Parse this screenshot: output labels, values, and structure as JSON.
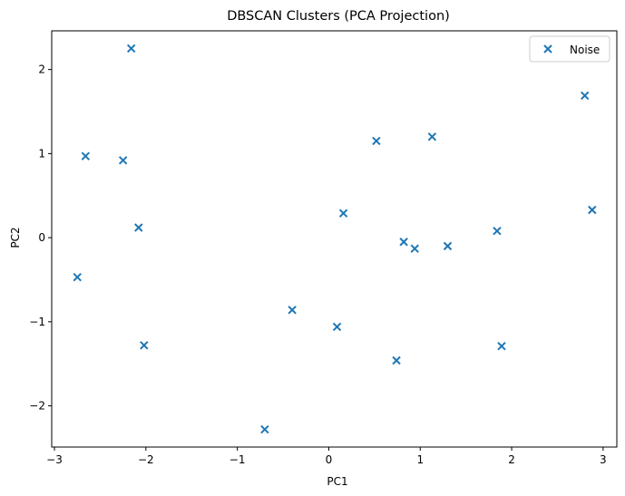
{
  "chart_data": {
    "type": "scatter",
    "title": "DBSCAN Clusters (PCA Projection)",
    "xlabel": "PC1",
    "ylabel": "PC2",
    "xlim": [
      -3.03,
      3.15
    ],
    "ylim": [
      -2.49,
      2.46
    ],
    "xticks": [
      -3,
      -2,
      -1,
      0,
      1,
      2,
      3
    ],
    "yticks": [
      -2,
      -1,
      0,
      1,
      2
    ],
    "grid": false,
    "legend": {
      "position": "top-right",
      "entries": [
        "Noise"
      ]
    },
    "series": [
      {
        "name": "Noise",
        "marker": "x",
        "color": "#1f77b4",
        "points": [
          [
            -2.16,
            2.25
          ],
          [
            -2.66,
            0.97
          ],
          [
            -2.25,
            0.92
          ],
          [
            -2.08,
            0.12
          ],
          [
            -2.75,
            -0.47
          ],
          [
            -2.02,
            -1.28
          ],
          [
            -0.7,
            -2.28
          ],
          [
            -0.4,
            -0.86
          ],
          [
            0.09,
            -1.06
          ],
          [
            0.16,
            0.29
          ],
          [
            0.52,
            1.15
          ],
          [
            1.13,
            1.2
          ],
          [
            0.82,
            -0.05
          ],
          [
            0.94,
            -0.13
          ],
          [
            1.3,
            -0.1
          ],
          [
            0.74,
            -1.46
          ],
          [
            1.84,
            0.08
          ],
          [
            1.89,
            -1.29
          ],
          [
            2.8,
            1.69
          ],
          [
            2.88,
            0.33
          ]
        ]
      }
    ]
  },
  "colors": {
    "axes": "#000000",
    "series": "#1f77b4",
    "legend_border": "#cccccc"
  }
}
